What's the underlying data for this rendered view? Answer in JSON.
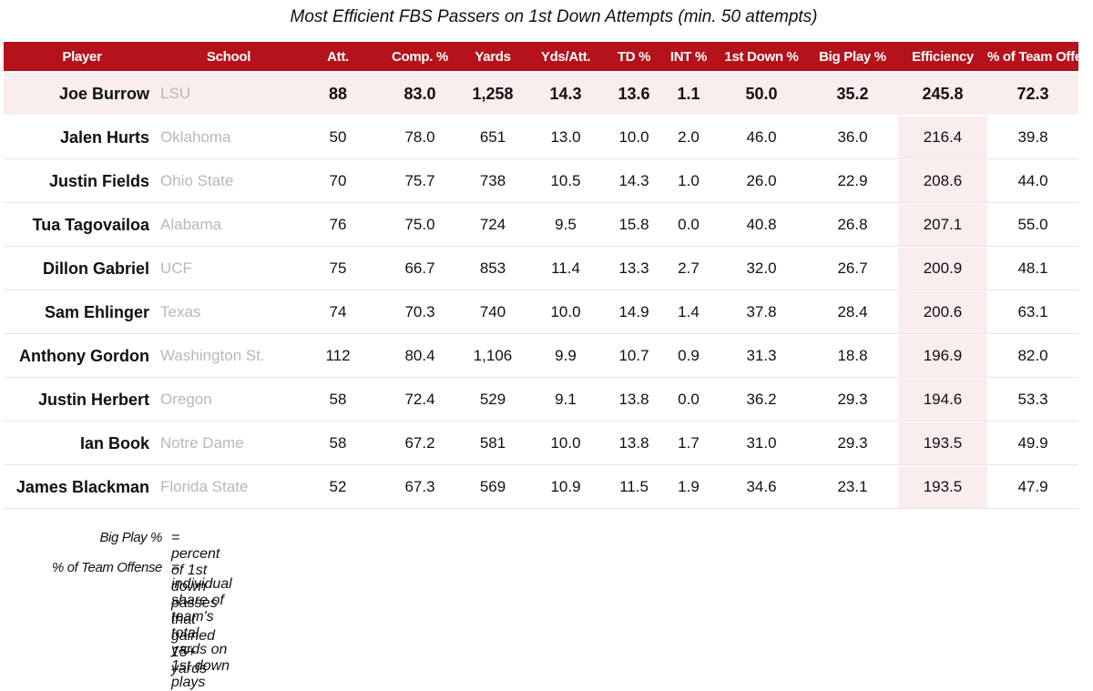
{
  "title": "Most Efficient FBS Passers on 1st Down Attempts (min. 50 attempts)",
  "colors": {
    "header_bg": "#b5121b",
    "highlight_bg": "#f9eded",
    "school_text": "#b8b8b8"
  },
  "chart_data": {
    "type": "table",
    "columns": [
      "Player",
      "School",
      "Att.",
      "Comp. %",
      "Yards",
      "Yds/Att.",
      "TD %",
      "INT %",
      "1st Down %",
      "Big Play %",
      "Efficiency",
      "% of Team Offense"
    ],
    "rows": [
      [
        "Joe Burrow",
        "LSU",
        "88",
        "83.0",
        "1,258",
        "14.3",
        "13.6",
        "1.1",
        "50.0",
        "35.2",
        "245.8",
        "72.3"
      ],
      [
        "Jalen Hurts",
        "Oklahoma",
        "50",
        "78.0",
        "651",
        "13.0",
        "10.0",
        "2.0",
        "46.0",
        "36.0",
        "216.4",
        "39.8"
      ],
      [
        "Justin Fields",
        "Ohio State",
        "70",
        "75.7",
        "738",
        "10.5",
        "14.3",
        "1.0",
        "26.0",
        "22.9",
        "208.6",
        "44.0"
      ],
      [
        "Tua Tagovailoa",
        "Alabama",
        "76",
        "75.0",
        "724",
        "9.5",
        "15.8",
        "0.0",
        "40.8",
        "26.8",
        "207.1",
        "55.0"
      ],
      [
        "Dillon Gabriel",
        "UCF",
        "75",
        "66.7",
        "853",
        "11.4",
        "13.3",
        "2.7",
        "32.0",
        "26.7",
        "200.9",
        "48.1"
      ],
      [
        "Sam Ehlinger",
        "Texas",
        "74",
        "70.3",
        "740",
        "10.0",
        "14.9",
        "1.4",
        "37.8",
        "28.4",
        "200.6",
        "63.1"
      ],
      [
        "Anthony Gordon",
        "Washington St.",
        "112",
        "80.4",
        "1,106",
        "9.9",
        "10.7",
        "0.9",
        "31.3",
        "18.8",
        "196.9",
        "82.0"
      ],
      [
        "Justin Herbert",
        "Oregon",
        "58",
        "72.4",
        "529",
        "9.1",
        "13.8",
        "0.0",
        "36.2",
        "29.3",
        "194.6",
        "53.3"
      ],
      [
        "Ian Book",
        "Notre Dame",
        "58",
        "67.2",
        "581",
        "10.0",
        "13.8",
        "1.7",
        "31.0",
        "29.3",
        "193.5",
        "49.9"
      ],
      [
        "James Blackman",
        "Florida State",
        "52",
        "67.3",
        "569",
        "10.9",
        "11.5",
        "1.9",
        "34.6",
        "23.1",
        "193.5",
        "47.9"
      ]
    ]
  },
  "notes": [
    {
      "term": "Big Play %",
      "definition": "= percent of 1st down passes that gained 15+ yards"
    },
    {
      "term": "% of Team Offense",
      "definition": "= individual share of team's total yards on 1st down plays"
    }
  ]
}
